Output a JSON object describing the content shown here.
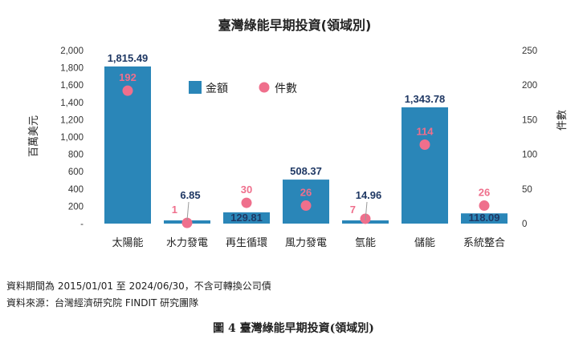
{
  "chart_data": {
    "type": "bar",
    "title": "臺灣綠能早期投資(領域別)",
    "categories": [
      "太陽能",
      "水力發電",
      "再生循環",
      "風力發電",
      "氫能",
      "儲能",
      "系統整合"
    ],
    "series": [
      {
        "name": "金額",
        "type": "bar",
        "axis": "left",
        "color": "#2a86b8",
        "values": [
          1815.49,
          6.85,
          129.81,
          508.37,
          14.96,
          1343.78,
          118.09
        ],
        "labels": [
          "1,815.49",
          "6.85",
          "129.81",
          "508.37",
          "14.96",
          "1,343.78",
          "118.09"
        ]
      },
      {
        "name": "件數",
        "type": "scatter",
        "axis": "right",
        "color": "#ef6f8c",
        "values": [
          192,
          1,
          30,
          26,
          7,
          114,
          26
        ],
        "labels": [
          "192",
          "1",
          "30",
          "26",
          "7",
          "114",
          "26"
        ]
      }
    ],
    "ylabel": "百萬美元",
    "y2label": "件數",
    "ylim": [
      0,
      2000
    ],
    "y2lim": [
      0,
      250
    ],
    "y_ticks": [
      "-",
      "200",
      "400",
      "600",
      "800",
      "1,000",
      "1,200",
      "1,400",
      "1,600",
      "1,800",
      "2,000"
    ],
    "y2_ticks": [
      "0",
      "50",
      "100",
      "150",
      "200",
      "250"
    ],
    "grid": false,
    "legend_position": "top-center"
  },
  "footer": {
    "line1": "資料期間為 2015/01/01 至 2024/06/30，不含可轉換公司債",
    "line2": "資料來源：台灣經濟研究院 FINDIT 研究團隊"
  },
  "caption": "圖 4  臺灣綠能早期投資(領域別)"
}
